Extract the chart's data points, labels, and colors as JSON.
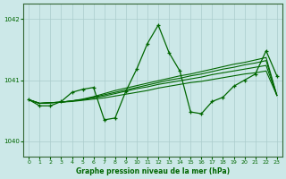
{
  "background_color": "#cce8e8",
  "grid_color": "#aacccc",
  "line_color": "#006600",
  "marker_color": "#006600",
  "ylim": [
    1039.75,
    1042.25
  ],
  "xlim": [
    -0.5,
    23.5
  ],
  "yticks": [
    1040,
    1041,
    1042
  ],
  "xticks": [
    0,
    1,
    2,
    3,
    4,
    5,
    6,
    7,
    8,
    9,
    10,
    11,
    12,
    13,
    14,
    15,
    16,
    17,
    18,
    19,
    20,
    21,
    22,
    23
  ],
  "xlabel": "Graphe pression niveau de la mer (hPa)",
  "smooth_lines": [
    [
      1040.68,
      1040.62,
      1040.63,
      1040.64,
      1040.65,
      1040.67,
      1040.69,
      1040.71,
      1040.74,
      1040.77,
      1040.8,
      1040.83,
      1040.87,
      1040.9,
      1040.93,
      1040.96,
      1040.98,
      1041.01,
      1041.04,
      1041.07,
      1041.1,
      1041.12,
      1041.15,
      1040.75
    ],
    [
      1040.68,
      1040.62,
      1040.63,
      1040.64,
      1040.66,
      1040.68,
      1040.71,
      1040.74,
      1040.78,
      1040.82,
      1040.86,
      1040.89,
      1040.93,
      1040.96,
      1040.99,
      1041.02,
      1041.05,
      1041.09,
      1041.12,
      1041.15,
      1041.18,
      1041.21,
      1041.24,
      1040.75
    ],
    [
      1040.68,
      1040.62,
      1040.63,
      1040.64,
      1040.66,
      1040.68,
      1040.72,
      1040.76,
      1040.8,
      1040.84,
      1040.88,
      1040.92,
      1040.96,
      1041.0,
      1041.03,
      1041.07,
      1041.1,
      1041.14,
      1041.18,
      1041.21,
      1041.25,
      1041.28,
      1041.32,
      1040.75
    ],
    [
      1040.68,
      1040.62,
      1040.63,
      1040.64,
      1040.66,
      1040.69,
      1040.73,
      1040.78,
      1040.83,
      1040.87,
      1040.91,
      1040.95,
      1040.99,
      1041.03,
      1041.07,
      1041.1,
      1041.14,
      1041.18,
      1041.22,
      1041.26,
      1041.29,
      1041.33,
      1041.37,
      1040.75
    ]
  ],
  "main_series_y": [
    1040.68,
    1040.58,
    1040.58,
    1040.65,
    1040.8,
    1040.85,
    1040.88,
    1040.35,
    1040.38,
    1040.82,
    1041.18,
    1041.6,
    1041.9,
    1041.45,
    1041.15,
    1040.48,
    1040.45,
    1040.65,
    1040.72,
    1040.9,
    1041.0,
    1041.1,
    1041.48,
    1041.07
  ]
}
